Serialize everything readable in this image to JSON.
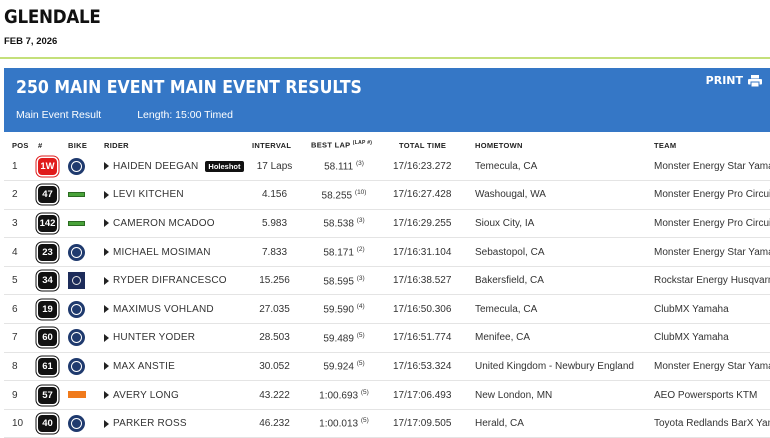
{
  "event": {
    "title": "GLENDALE",
    "date": "FEB 7, 2026"
  },
  "banner": {
    "title": "250 MAIN EVENT MAIN EVENT RESULTS",
    "print_label": "PRINT",
    "subtitle_left": "Main Event Result",
    "subtitle_right": "Length: 15:00 Timed"
  },
  "columns": {
    "pos": "POS",
    "num": "#",
    "bike": "BIKE",
    "rider": "RIDER",
    "interval": "INTERVAL",
    "best_lap": "BEST LAP",
    "best_lap_sup": "(LAP #)",
    "total_time": "TOTAL TIME",
    "hometown": "HOMETOWN",
    "team": "TEAM"
  },
  "colors": {
    "banner": "#3577c6",
    "accent_rule": "#c4e07a",
    "red_plate": "#e01b1b"
  },
  "rows": [
    {
      "pos": "1",
      "num": "1W",
      "plate": "red",
      "bike": "yamaha",
      "rider": "HAIDEN DEEGAN",
      "badge": "Holeshot",
      "interval": "17 Laps",
      "best_lap": "58.111",
      "lap_no": "(3)",
      "total_time": "17/16:23.272",
      "hometown": "Temecula, CA",
      "team": "Monster Energy Star Yamaha Racing"
    },
    {
      "pos": "2",
      "num": "47",
      "plate": "black",
      "bike": "kawasaki",
      "rider": "LEVI KITCHEN",
      "badge": "",
      "interval": "4.156",
      "best_lap": "58.255",
      "lap_no": "(10)",
      "total_time": "17/16:27.428",
      "hometown": "Washougal, WA",
      "team": "Monster Energy Pro Circuit Kawasaki"
    },
    {
      "pos": "3",
      "num": "142",
      "plate": "black",
      "bike": "kawasaki",
      "rider": "CAMERON MCADOO",
      "badge": "",
      "interval": "5.983",
      "best_lap": "58.538",
      "lap_no": "(3)",
      "total_time": "17/16:29.255",
      "hometown": "Sioux City, IA",
      "team": "Monster Energy Pro Circuit Kawasaki"
    },
    {
      "pos": "4",
      "num": "23",
      "plate": "black",
      "bike": "yamaha",
      "rider": "MICHAEL MOSIMAN",
      "badge": "",
      "interval": "7.833",
      "best_lap": "58.171",
      "lap_no": "(2)",
      "total_time": "17/16:31.104",
      "hometown": "Sebastopol, CA",
      "team": "Monster Energy Star Yamaha Racing"
    },
    {
      "pos": "5",
      "num": "34",
      "plate": "black",
      "bike": "husqvarna",
      "rider": "RYDER DIFRANCESCO",
      "badge": "",
      "interval": "15.256",
      "best_lap": "58.595",
      "lap_no": "(3)",
      "total_time": "17/16:38.527",
      "hometown": "Bakersfield, CA",
      "team": "Rockstar Energy Husqvarna Factory Racing"
    },
    {
      "pos": "6",
      "num": "19",
      "plate": "black",
      "bike": "yamaha",
      "rider": "MAXIMUS VOHLAND",
      "badge": "",
      "interval": "27.035",
      "best_lap": "59.590",
      "lap_no": "(4)",
      "total_time": "17/16:50.306",
      "hometown": "Temecula, CA",
      "team": "ClubMX Yamaha"
    },
    {
      "pos": "7",
      "num": "60",
      "plate": "black",
      "bike": "yamaha",
      "rider": "HUNTER YODER",
      "badge": "",
      "interval": "28.503",
      "best_lap": "59.489",
      "lap_no": "(5)",
      "total_time": "17/16:51.774",
      "hometown": "Menifee, CA",
      "team": "ClubMX Yamaha"
    },
    {
      "pos": "8",
      "num": "61",
      "plate": "black",
      "bike": "yamaha",
      "rider": "MAX ANSTIE",
      "badge": "",
      "interval": "30.052",
      "best_lap": "59.924",
      "lap_no": "(5)",
      "total_time": "17/16:53.324",
      "hometown": "United Kingdom - Newbury England",
      "team": "Monster Energy Star Yamaha Racing"
    },
    {
      "pos": "9",
      "num": "57",
      "plate": "black",
      "bike": "ktm",
      "rider": "AVERY LONG",
      "badge": "",
      "interval": "43.222",
      "best_lap": "1:00.693",
      "lap_no": "(5)",
      "total_time": "17/17:06.493",
      "hometown": "New London, MN",
      "team": "AEO Powersports KTM"
    },
    {
      "pos": "10",
      "num": "40",
      "plate": "black",
      "bike": "yamaha",
      "rider": "PARKER ROSS",
      "badge": "",
      "interval": "46.232",
      "best_lap": "1:00.013",
      "lap_no": "(5)",
      "total_time": "17/17:09.505",
      "hometown": "Herald, CA",
      "team": "Toyota Redlands BarX Yamaha"
    }
  ]
}
